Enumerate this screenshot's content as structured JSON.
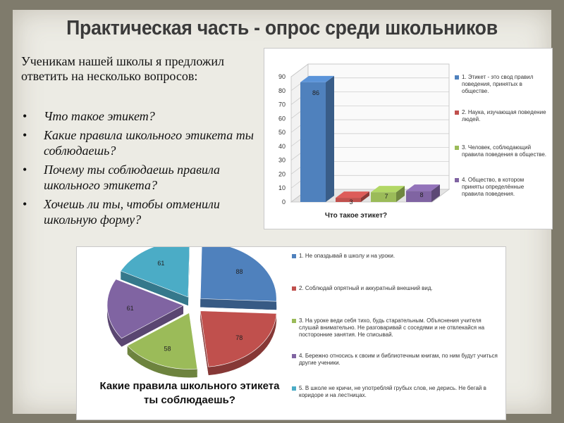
{
  "title": "Практическая часть - опрос среди школьников",
  "intro": "Ученикам нашей школы я предложил ответить на несколько вопросов:",
  "questions": [
    "Что такое этикет?",
    "Какие правила школьного этикета ты соблюдаешь?",
    "Почему ты соблюдаешь правила школьного этикета?",
    "Хочешь ли ты,  чтобы отменили школьную форму?"
  ],
  "chart_data": [
    {
      "type": "bar",
      "title": "Что такое этикет?",
      "ylim": [
        0,
        90
      ],
      "yticks": [
        "0",
        "10",
        "20",
        "30",
        "40",
        "50",
        "60",
        "70",
        "80",
        "90"
      ],
      "grid": true,
      "legend": "right",
      "categories": [
        "1. Этикет - это свод правил поведения, принятых в обществе.",
        "2. Наука, изучающая поведение людей.",
        "3. Человек, соблюдающий правила поведения в обществе.",
        "4. Общество, в котором приняты определённые правила поведения."
      ],
      "values": [
        86,
        3,
        7,
        8
      ],
      "labels": [
        "86",
        "3",
        "7",
        "8"
      ],
      "colors": [
        "#4f81bd",
        "#c0504d",
        "#9bbb59",
        "#8064a2"
      ]
    },
    {
      "type": "pie",
      "title": "Какие правила школьного этикета ты соблюдаешь?",
      "legend": "right",
      "categories": [
        "1.   Не опаздывай в школу и на уроки.",
        "2.  Соблюдай опрятный и аккуратный внешний вид.",
        "3.  На уроке веди себя тихо, будь старательным. Объяснения учителя слушай внимательно. Не разговаривай с соседями и не отвлекайся на посторонние занятия. Не списывай.",
        "4.  Бережно относись к своим и библиотечным книгам, по ним будут учиться другие ученики.",
        "5.  В школе не кричи, не употребляй грубых слов, не дерись. Не бегай в коридоре и на лестницах."
      ],
      "values": [
        88,
        78,
        58,
        61,
        61
      ],
      "labels": [
        "88",
        "78",
        "58",
        "61",
        "61"
      ],
      "colors": [
        "#4f81bd",
        "#c0504d",
        "#9bbb59",
        "#8064a2",
        "#4bacc6"
      ]
    }
  ]
}
